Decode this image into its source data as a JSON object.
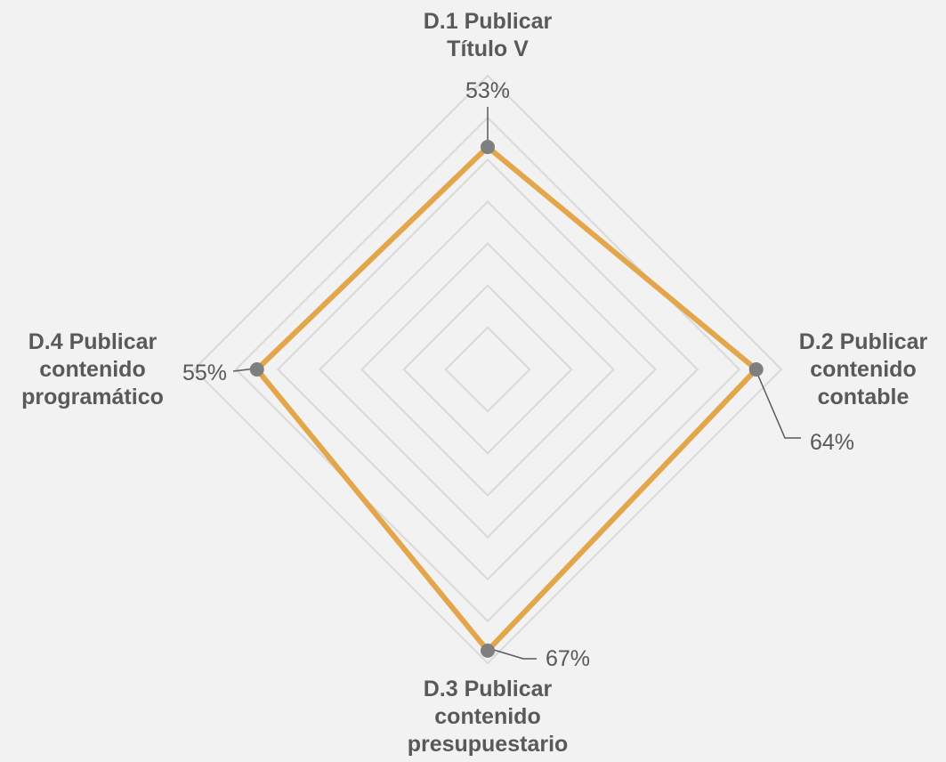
{
  "chart_data": {
    "type": "radar",
    "title": "",
    "categories": [
      "D.1 Publicar Título V",
      "D.2 Publicar contenido contable",
      "D.3 Publicar contenido presupuestario",
      "D.4 Publicar contenido programático"
    ],
    "category_label_lines": [
      [
        "D.1 Publicar",
        "Título V"
      ],
      [
        "D.2 Publicar",
        "contenido",
        "contable"
      ],
      [
        "D.3 Publicar",
        "contenido",
        "presupuestario"
      ],
      [
        "D.4 Publicar",
        "contenido",
        "programático"
      ]
    ],
    "values": [
      0.53,
      0.64,
      0.67,
      0.55
    ],
    "data_labels": [
      "53%",
      "64%",
      "67%",
      "55%"
    ],
    "axis_range": [
      0,
      0.7
    ],
    "grid": true,
    "grid_rings": 7,
    "legend": "none",
    "colors": {
      "series": "#E3A64B",
      "marker": "#7F7F7F",
      "grid": "#D9D9D9",
      "text": "#595959",
      "background": "#F2F2F2"
    }
  }
}
